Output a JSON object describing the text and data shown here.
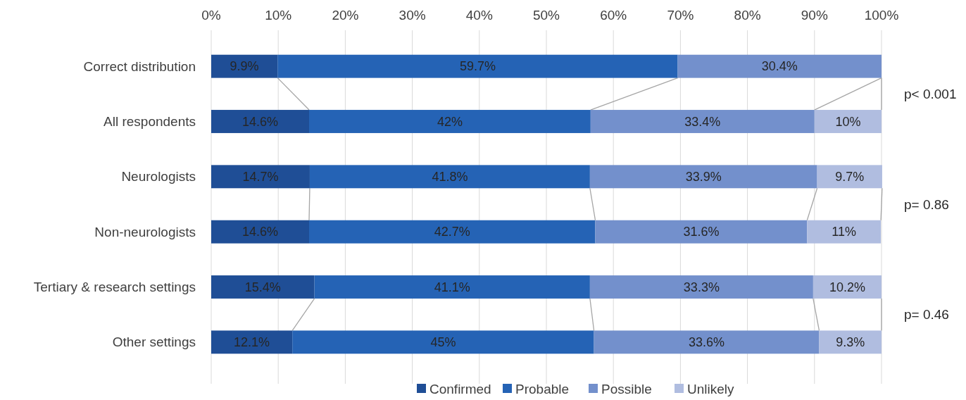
{
  "chart_data": {
    "type": "bar",
    "orientation": "horizontal",
    "stacked": true,
    "categories": [
      "Correct distribution",
      "All respondents",
      "Neurologists",
      "Non-neurologists",
      "Tertiary & research settings",
      "Other settings"
    ],
    "series": [
      {
        "name": "Confirmed",
        "color": "#1f4e96",
        "values": [
          9.9,
          14.6,
          14.7,
          14.6,
          15.4,
          12.1
        ],
        "value_labels": [
          "9.9%",
          "14.6%",
          "14.7%",
          "14.6%",
          "15.4%",
          "12.1%"
        ]
      },
      {
        "name": "Probable",
        "color": "#2563b5",
        "values": [
          59.7,
          42,
          41.8,
          42.7,
          41.1,
          45
        ],
        "value_labels": [
          "59.7%",
          "42%",
          "41.8%",
          "42.7%",
          "41.1%",
          "45%"
        ]
      },
      {
        "name": "Possible",
        "color": "#7390cc",
        "values": [
          30.4,
          33.4,
          33.9,
          31.6,
          33.3,
          33.6
        ],
        "value_labels": [
          "30.4%",
          "33.4%",
          "33.9%",
          "31.6%",
          "33.3%",
          "33.6%"
        ]
      },
      {
        "name": "Unlikely",
        "color": "#b0bde0",
        "values": [
          0,
          10,
          9.7,
          11,
          10.2,
          9.3
        ],
        "value_labels": [
          null,
          "10%",
          "9.7%",
          "11%",
          "10.2%",
          "9.3%"
        ]
      }
    ],
    "xlim": [
      0,
      100
    ],
    "xticks": [
      {
        "value": 0,
        "label": "0%"
      },
      {
        "value": 10,
        "label": "10%"
      },
      {
        "value": 20,
        "label": "20%"
      },
      {
        "value": 30,
        "label": "30%"
      },
      {
        "value": 40,
        "label": "40%"
      },
      {
        "value": 50,
        "label": "50%"
      },
      {
        "value": 60,
        "label": "60%"
      },
      {
        "value": 70,
        "label": "70%"
      },
      {
        "value": 80,
        "label": "80%"
      },
      {
        "value": 90,
        "label": "90%"
      },
      {
        "value": 100,
        "label": "100%"
      }
    ],
    "grid": "x",
    "legend": "bottom",
    "annotations": [
      "p< 0.001",
      "p= 0.86",
      "p= 0.46"
    ]
  }
}
